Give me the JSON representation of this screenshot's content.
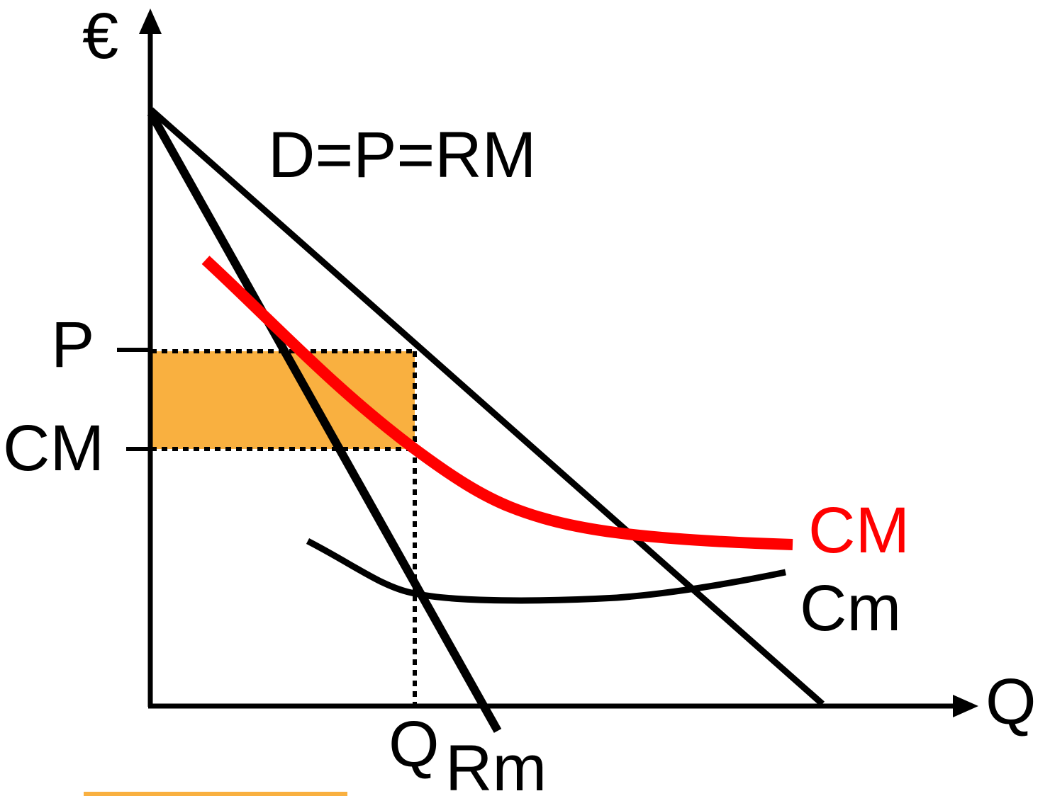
{
  "diagram": {
    "y_axis_label": "€",
    "x_axis_label": "Q",
    "demand_label": "D=P=RM",
    "price_label": "P",
    "avg_cost_axis_label": "CM",
    "avg_cost_curve_label": "CM",
    "marginal_cost_label": "Cm",
    "quantity_label": "Q",
    "quantity_subscript": "Rm",
    "colors": {
      "axes": "#000000",
      "average_cost_curve": "#ff0000",
      "profit_area": "#f9b040",
      "underline": "#f9b040",
      "text": "#000000",
      "avg_cost_curve_label": "#ff0000"
    }
  }
}
